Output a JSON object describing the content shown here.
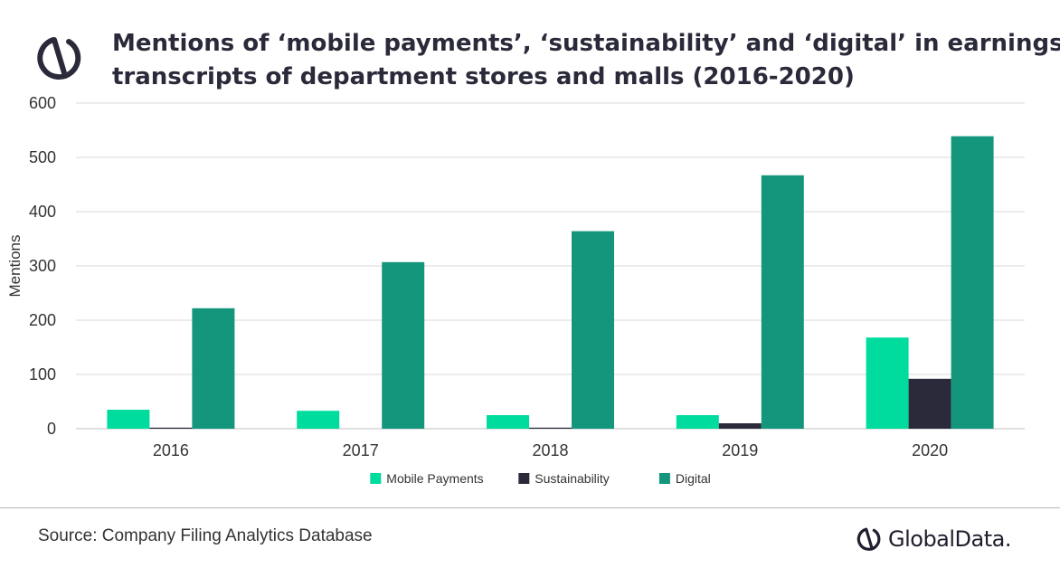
{
  "title": {
    "line1": "Mentions of ‘mobile payments’, ‘sustainability’ and ‘digital’ in earnings",
    "line2": "transcripts of department stores and malls (2016-2020)"
  },
  "footer": {
    "source": "Source: Company Filing Analytics Database",
    "brand": "GlobalData."
  },
  "icons": {
    "logo": "globaldata-logo-icon",
    "brand": "globaldata-brand-icon"
  },
  "chart_data": {
    "type": "bar",
    "categories": [
      "2016",
      "2017",
      "2018",
      "2019",
      "2020"
    ],
    "series": [
      {
        "name": "Mobile Payments",
        "color": "#00DC9E",
        "values": [
          35,
          33,
          25,
          25,
          168
        ]
      },
      {
        "name": "Sustainability",
        "color": "#2A2A3B",
        "values": [
          2,
          0,
          2,
          10,
          92
        ]
      },
      {
        "name": "Digital",
        "color": "#14967C",
        "values": [
          222,
          307,
          364,
          467,
          539
        ]
      }
    ],
    "ylabel": "Mentions",
    "xlabel": "",
    "ylim": [
      0,
      600
    ],
    "yticks": [
      0,
      100,
      200,
      300,
      400,
      500,
      600
    ],
    "grid": true,
    "legend": "bottom"
  }
}
